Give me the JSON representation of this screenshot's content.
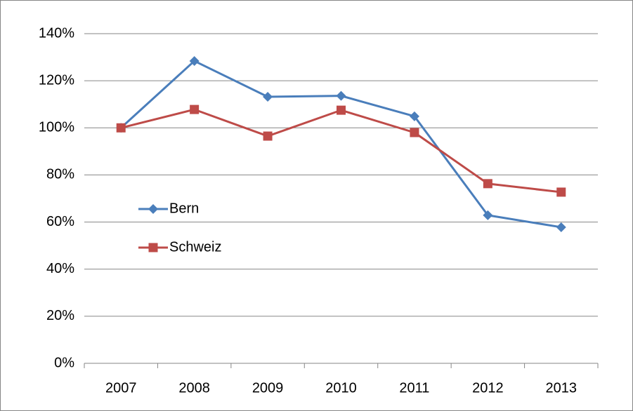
{
  "chart_data": {
    "type": "line",
    "categories": [
      "2007",
      "2008",
      "2009",
      "2010",
      "2011",
      "2012",
      "2013"
    ],
    "series": [
      {
        "name": "Bern",
        "color": "#4a7ebb",
        "marker": "diamond",
        "values": [
          100,
          128.4,
          113.2,
          113.6,
          104.9,
          62.9,
          57.8
        ]
      },
      {
        "name": "Schweiz",
        "color": "#be4b48",
        "marker": "square",
        "values": [
          100,
          107.8,
          96.5,
          107.5,
          98,
          76.3,
          72.7
        ]
      }
    ],
    "ylim": [
      0,
      140
    ],
    "yticks": [
      {
        "value": 0,
        "label": "0%"
      },
      {
        "value": 20,
        "label": "20%"
      },
      {
        "value": 40,
        "label": "40%"
      },
      {
        "value": 60,
        "label": "60%"
      },
      {
        "value": 80,
        "label": "80%"
      },
      {
        "value": 100,
        "label": "100%"
      },
      {
        "value": 120,
        "label": "120%"
      },
      {
        "value": 140,
        "label": "140%"
      }
    ],
    "grid": true,
    "legend": "left"
  }
}
